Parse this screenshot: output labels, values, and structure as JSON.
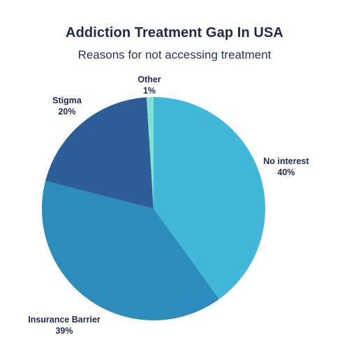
{
  "chart_data": {
    "type": "pie",
    "title": "Addiction Treatment Gap In USA",
    "subtitle": "Reasons for not accessing treatment",
    "slices": [
      {
        "label": "No interest",
        "value_label": "40%",
        "value": 40,
        "color": "#42b8d8"
      },
      {
        "label": "Insurance Barrier",
        "value_label": "39%",
        "value": 39,
        "color": "#2c8cbb"
      },
      {
        "label": "Stigma",
        "value_label": "20%",
        "value": 20,
        "color": "#2d5e98"
      },
      {
        "label": "Other",
        "value_label": "1%",
        "value": 1,
        "color": "#7ee3d2"
      }
    ]
  }
}
